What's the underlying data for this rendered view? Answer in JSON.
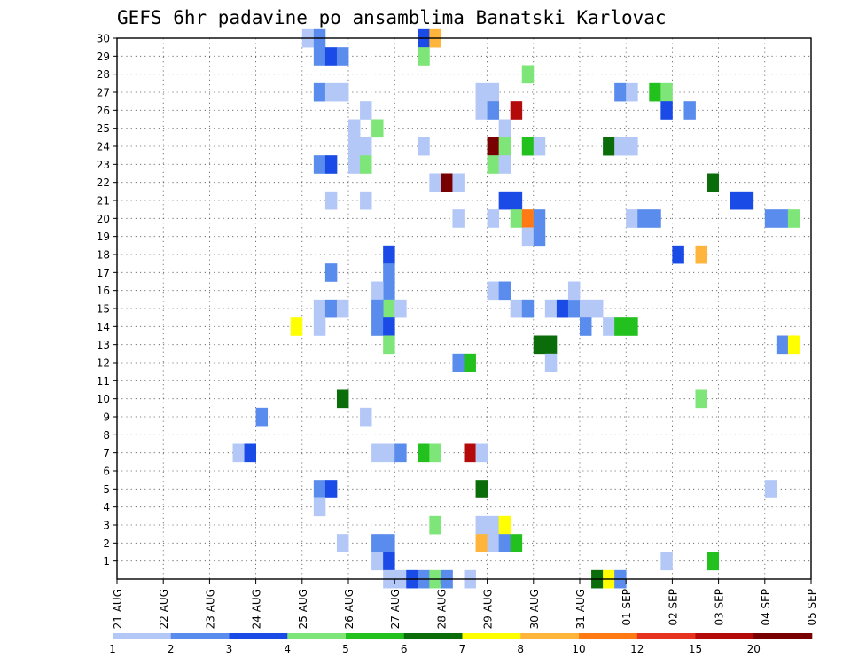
{
  "chart_data": {
    "type": "heatmap",
    "title": "GEFS 6hr padavine po ansamblima Banatski Karlovac",
    "x_tick_labels": [
      "21 AUG",
      "22 AUG",
      "23 AUG",
      "24 AUG",
      "25 AUG",
      "26 AUG",
      "27 AUG",
      "28 AUG",
      "29 AUG",
      "30 AUG",
      "31 AUG",
      "01 SEP",
      "02 SEP",
      "03 SEP",
      "04 SEP",
      "05 SEP"
    ],
    "x_range_days": [
      0,
      15
    ],
    "time_step_hours": 6,
    "y_tick_labels": [
      1,
      2,
      3,
      4,
      5,
      6,
      7,
      8,
      9,
      10,
      11,
      12,
      13,
      14,
      15,
      16,
      17,
      18,
      19,
      20,
      21,
      22,
      23,
      24,
      25,
      26,
      27,
      28,
      29,
      30
    ],
    "y_range": [
      0,
      30
    ],
    "grid": true,
    "colorbar": {
      "labels": [
        "1",
        "2",
        "3",
        "4",
        "5",
        "6",
        "7",
        "8",
        "10",
        "12",
        "15",
        "20"
      ],
      "colors": [
        "#b4c8f8",
        "#5a8ced",
        "#1a4be6",
        "#7ee678",
        "#22c11e",
        "#0a6d0a",
        "#ffff00",
        "#ffb43c",
        "#ff7a14",
        "#e6321e",
        "#b40a0a",
        "#780000"
      ]
    },
    "cells": [
      {
        "t": 4.0,
        "m": 30,
        "c": 1
      },
      {
        "t": 4.25,
        "m": 30,
        "c": 2
      },
      {
        "t": 4.25,
        "m": 29,
        "c": 2
      },
      {
        "t": 4.5,
        "m": 29,
        "c": 3
      },
      {
        "t": 4.75,
        "m": 29,
        "c": 2
      },
      {
        "t": 4.25,
        "m": 27,
        "c": 2
      },
      {
        "t": 4.5,
        "m": 27,
        "c": 1
      },
      {
        "t": 4.75,
        "m": 27,
        "c": 1
      },
      {
        "t": 4.25,
        "m": 23,
        "c": 2
      },
      {
        "t": 4.5,
        "m": 23,
        "c": 3
      },
      {
        "t": 4.5,
        "m": 21,
        "c": 1
      },
      {
        "t": 4.5,
        "m": 17,
        "c": 2
      },
      {
        "t": 4.25,
        "m": 15,
        "c": 1
      },
      {
        "t": 4.5,
        "m": 15,
        "c": 2
      },
      {
        "t": 4.75,
        "m": 15,
        "c": 1
      },
      {
        "t": 3.75,
        "m": 14,
        "c": 7
      },
      {
        "t": 4.25,
        "m": 14,
        "c": 1
      },
      {
        "t": 4.25,
        "m": 5,
        "c": 2
      },
      {
        "t": 4.5,
        "m": 5,
        "c": 3
      },
      {
        "t": 4.25,
        "m": 4,
        "c": 1
      },
      {
        "t": 4.75,
        "m": 10,
        "c": 6
      },
      {
        "t": 4.75,
        "m": 2,
        "c": 1
      },
      {
        "t": 3.0,
        "m": 9,
        "c": 2
      },
      {
        "t": 2.5,
        "m": 7,
        "c": 1
      },
      {
        "t": 2.75,
        "m": 7,
        "c": 3
      },
      {
        "t": 5.25,
        "m": 26,
        "c": 1
      },
      {
        "t": 5.0,
        "m": 25,
        "c": 1
      },
      {
        "t": 5.0,
        "m": 24,
        "c": 1
      },
      {
        "t": 5.25,
        "m": 24,
        "c": 1
      },
      {
        "t": 5.0,
        "m": 23,
        "c": 1
      },
      {
        "t": 5.25,
        "m": 23,
        "c": 4
      },
      {
        "t": 5.5,
        "m": 25,
        "c": 4
      },
      {
        "t": 5.25,
        "m": 21,
        "c": 1
      },
      {
        "t": 5.75,
        "m": 18,
        "c": 3
      },
      {
        "t": 5.75,
        "m": 17,
        "c": 2
      },
      {
        "t": 5.75,
        "m": 16,
        "c": 2
      },
      {
        "t": 5.5,
        "m": 16,
        "c": 1
      },
      {
        "t": 5.75,
        "m": 15,
        "c": 4
      },
      {
        "t": 6.0,
        "m": 15,
        "c": 1
      },
      {
        "t": 5.5,
        "m": 15,
        "c": 2
      },
      {
        "t": 5.5,
        "m": 14,
        "c": 2
      },
      {
        "t": 5.75,
        "m": 14,
        "c": 3
      },
      {
        "t": 5.75,
        "m": 13,
        "c": 4
      },
      {
        "t": 5.25,
        "m": 9,
        "c": 1
      },
      {
        "t": 5.5,
        "m": 7,
        "c": 1
      },
      {
        "t": 5.75,
        "m": 7,
        "c": 1
      },
      {
        "t": 6.0,
        "m": 7,
        "c": 2
      },
      {
        "t": 5.5,
        "m": 2,
        "c": 2
      },
      {
        "t": 5.75,
        "m": 2,
        "c": 2
      },
      {
        "t": 5.5,
        "m": 1,
        "c": 1
      },
      {
        "t": 5.75,
        "m": 1,
        "c": 3
      },
      {
        "t": 5.75,
        "m": 0,
        "c": 1
      },
      {
        "t": 6.0,
        "m": 0,
        "c": 1
      },
      {
        "t": 6.25,
        "m": 0,
        "c": 3
      },
      {
        "t": 6.5,
        "m": 0,
        "c": 2
      },
      {
        "t": 6.5,
        "m": 30,
        "c": 3
      },
      {
        "t": 6.75,
        "m": 30,
        "c": 8
      },
      {
        "t": 6.5,
        "m": 29,
        "c": 4
      },
      {
        "t": 6.5,
        "m": 24,
        "c": 1
      },
      {
        "t": 6.75,
        "m": 22,
        "c": 1
      },
      {
        "t": 7.0,
        "m": 22,
        "c": 12
      },
      {
        "t": 7.25,
        "m": 22,
        "c": 1
      },
      {
        "t": 6.5,
        "m": 7,
        "c": 5
      },
      {
        "t": 6.75,
        "m": 7,
        "c": 4
      },
      {
        "t": 6.75,
        "m": 3,
        "c": 4
      },
      {
        "t": 6.75,
        "m": 0,
        "c": 4
      },
      {
        "t": 7.0,
        "m": 0,
        "c": 2
      },
      {
        "t": 7.25,
        "m": 20,
        "c": 1
      },
      {
        "t": 7.25,
        "m": 12,
        "c": 2
      },
      {
        "t": 7.5,
        "m": 12,
        "c": 5
      },
      {
        "t": 7.5,
        "m": 7,
        "c": 11
      },
      {
        "t": 7.75,
        "m": 7,
        "c": 1
      },
      {
        "t": 7.5,
        "m": 0,
        "c": 1
      },
      {
        "t": 7.75,
        "m": 5,
        "c": 6
      },
      {
        "t": 7.75,
        "m": 27,
        "c": 1
      },
      {
        "t": 8.0,
        "m": 27,
        "c": 1
      },
      {
        "t": 7.75,
        "m": 26,
        "c": 1
      },
      {
        "t": 8.0,
        "m": 26,
        "c": 2
      },
      {
        "t": 8.25,
        "m": 25,
        "c": 1
      },
      {
        "t": 8.0,
        "m": 24,
        "c": 12
      },
      {
        "t": 8.25,
        "m": 24,
        "c": 4
      },
      {
        "t": 8.0,
        "m": 23,
        "c": 4
      },
      {
        "t": 8.25,
        "m": 23,
        "c": 1
      },
      {
        "t": 8.25,
        "m": 21,
        "c": 3
      },
      {
        "t": 8.5,
        "m": 21,
        "c": 3
      },
      {
        "t": 8.0,
        "m": 20,
        "c": 1
      },
      {
        "t": 8.5,
        "m": 20,
        "c": 4
      },
      {
        "t": 8.75,
        "m": 20,
        "c": 9
      },
      {
        "t": 9.0,
        "m": 20,
        "c": 2
      },
      {
        "t": 8.75,
        "m": 19,
        "c": 1
      },
      {
        "t": 9.0,
        "m": 19,
        "c": 2
      },
      {
        "t": 8.0,
        "m": 16,
        "c": 1
      },
      {
        "t": 8.25,
        "m": 16,
        "c": 2
      },
      {
        "t": 8.5,
        "m": 15,
        "c": 1
      },
      {
        "t": 8.75,
        "m": 15,
        "c": 2
      },
      {
        "t": 7.75,
        "m": 3,
        "c": 1
      },
      {
        "t": 8.0,
        "m": 3,
        "c": 1
      },
      {
        "t": 8.25,
        "m": 3,
        "c": 7
      },
      {
        "t": 7.75,
        "m": 2,
        "c": 8
      },
      {
        "t": 8.0,
        "m": 2,
        "c": 1
      },
      {
        "t": 8.25,
        "m": 2,
        "c": 2
      },
      {
        "t": 8.5,
        "m": 2,
        "c": 5
      },
      {
        "t": 8.5,
        "m": 26,
        "c": 11
      },
      {
        "t": 8.75,
        "m": 28,
        "c": 4
      },
      {
        "t": 8.75,
        "m": 24,
        "c": 5
      },
      {
        "t": 9.0,
        "m": 24,
        "c": 1
      },
      {
        "t": 9.0,
        "m": 13,
        "c": 6
      },
      {
        "t": 9.25,
        "m": 13,
        "c": 6
      },
      {
        "t": 9.25,
        "m": 12,
        "c": 1
      },
      {
        "t": 9.25,
        "m": 15,
        "c": 1
      },
      {
        "t": 9.5,
        "m": 15,
        "c": 3
      },
      {
        "t": 9.75,
        "m": 15,
        "c": 2
      },
      {
        "t": 9.75,
        "m": 16,
        "c": 1
      },
      {
        "t": 10.0,
        "m": 15,
        "c": 1
      },
      {
        "t": 10.25,
        "m": 15,
        "c": 1
      },
      {
        "t": 10.0,
        "m": 14,
        "c": 2
      },
      {
        "t": 10.5,
        "m": 14,
        "c": 1
      },
      {
        "t": 10.75,
        "m": 14,
        "c": 5
      },
      {
        "t": 11.0,
        "m": 14,
        "c": 5
      },
      {
        "t": 10.5,
        "m": 24,
        "c": 6
      },
      {
        "t": 10.75,
        "m": 24,
        "c": 1
      },
      {
        "t": 11.0,
        "m": 24,
        "c": 1
      },
      {
        "t": 10.75,
        "m": 27,
        "c": 2
      },
      {
        "t": 11.0,
        "m": 27,
        "c": 1
      },
      {
        "t": 11.5,
        "m": 27,
        "c": 5
      },
      {
        "t": 11.75,
        "m": 27,
        "c": 4
      },
      {
        "t": 11.75,
        "m": 26,
        "c": 3
      },
      {
        "t": 12.25,
        "m": 26,
        "c": 2
      },
      {
        "t": 11.0,
        "m": 20,
        "c": 1
      },
      {
        "t": 11.25,
        "m": 20,
        "c": 2
      },
      {
        "t": 11.5,
        "m": 20,
        "c": 2
      },
      {
        "t": 12.0,
        "m": 18,
        "c": 3
      },
      {
        "t": 12.5,
        "m": 18,
        "c": 8
      },
      {
        "t": 10.25,
        "m": 0,
        "c": 6
      },
      {
        "t": 10.5,
        "m": 0,
        "c": 7
      },
      {
        "t": 10.75,
        "m": 0,
        "c": 2
      },
      {
        "t": 11.75,
        "m": 1,
        "c": 1
      },
      {
        "t": 12.75,
        "m": 1,
        "c": 5
      },
      {
        "t": 12.5,
        "m": 10,
        "c": 4
      },
      {
        "t": 12.75,
        "m": 22,
        "c": 6
      },
      {
        "t": 13.25,
        "m": 21,
        "c": 3
      },
      {
        "t": 13.5,
        "m": 21,
        "c": 3
      },
      {
        "t": 14.0,
        "m": 20,
        "c": 2
      },
      {
        "t": 14.25,
        "m": 20,
        "c": 2
      },
      {
        "t": 14.5,
        "m": 20,
        "c": 4
      },
      {
        "t": 14.25,
        "m": 13,
        "c": 2
      },
      {
        "t": 14.5,
        "m": 13,
        "c": 7
      },
      {
        "t": 14.0,
        "m": 5,
        "c": 1
      }
    ]
  }
}
